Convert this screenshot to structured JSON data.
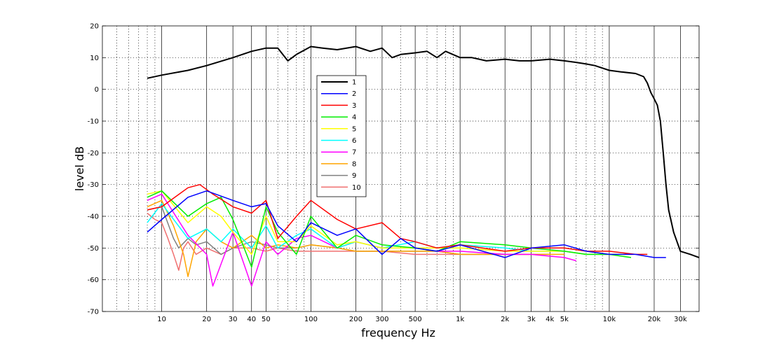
{
  "chart_data": {
    "type": "line",
    "xlabel": "frequency   Hz",
    "ylabel": "level dB",
    "xscale": "log",
    "xlim": [
      4,
      40000
    ],
    "ylim": [
      -70,
      20
    ],
    "grid": "on",
    "legend_placement": "center-upper",
    "x_ticks": [
      {
        "value": 10,
        "label": "10"
      },
      {
        "value": 20,
        "label": "20"
      },
      {
        "value": 30,
        "label": "30"
      },
      {
        "value": 40,
        "label": "40"
      },
      {
        "value": 50,
        "label": "50"
      },
      {
        "value": 100,
        "label": "100"
      },
      {
        "value": 200,
        "label": "200"
      },
      {
        "value": 300,
        "label": "300"
      },
      {
        "value": 500,
        "label": "500"
      },
      {
        "value": 1000,
        "label": "1k"
      },
      {
        "value": 2000,
        "label": "2k"
      },
      {
        "value": 3000,
        "label": "3k"
      },
      {
        "value": 4000,
        "label": "4k"
      },
      {
        "value": 5000,
        "label": "5k"
      },
      {
        "value": 10000,
        "label": "10k"
      },
      {
        "value": 20000,
        "label": "20k"
      },
      {
        "value": 30000,
        "label": "30k"
      }
    ],
    "x_minor_dotted": [
      5,
      6,
      7,
      8,
      9,
      60,
      70,
      80,
      90,
      400,
      600,
      700,
      800,
      900,
      6000,
      7000,
      8000,
      9000
    ],
    "y_ticks": [
      20,
      10,
      0,
      -10,
      -20,
      -30,
      -40,
      -50,
      -60,
      -70
    ],
    "series": [
      {
        "name": "1",
        "color": "#000000",
        "x": [
          8,
          10,
          15,
          20,
          30,
          40,
          50,
          60,
          70,
          80,
          100,
          120,
          150,
          200,
          250,
          300,
          350,
          400,
          500,
          600,
          700,
          800,
          1000,
          1200,
          1500,
          2000,
          2500,
          3000,
          4000,
          5000,
          6000,
          7000,
          8000,
          10000,
          12000,
          15000,
          17000,
          18000,
          19000,
          20000,
          21000,
          22000,
          23000,
          24000,
          25000,
          27000,
          30000,
          35000,
          40000
        ],
        "y": [
          3.5,
          4.5,
          6,
          7.5,
          10,
          12,
          13,
          13,
          9,
          11,
          13.5,
          13,
          12.5,
          13.5,
          12,
          13,
          10,
          11,
          11.5,
          12,
          10,
          12,
          10,
          10,
          9,
          9.5,
          9,
          9,
          9.5,
          9,
          8.5,
          8,
          7.5,
          6,
          5.5,
          5,
          4,
          2,
          -1,
          -3,
          -5,
          -10,
          -20,
          -30,
          -38,
          -45,
          -51,
          -52,
          -53
        ]
      },
      {
        "name": "2",
        "color": "#0000ff",
        "x": [
          8,
          10,
          15,
          20,
          30,
          40,
          50,
          60,
          80,
          100,
          150,
          200,
          300,
          400,
          500,
          700,
          1000,
          2000,
          3000,
          5000,
          7000,
          10000,
          15000,
          20000,
          24000
        ],
        "y": [
          -45,
          -41,
          -34,
          -32,
          -35,
          -37,
          -36,
          -43,
          -48,
          -42,
          -46,
          -44,
          -52,
          -47,
          -50,
          -51,
          -49,
          -53,
          -50,
          -49,
          -51,
          -52,
          -52,
          -53,
          -53
        ]
      },
      {
        "name": "3",
        "color": "#ff0000",
        "x": [
          8,
          10,
          15,
          18,
          22,
          30,
          40,
          50,
          60,
          80,
          100,
          150,
          200,
          300,
          400,
          500,
          700,
          1000,
          2000,
          3000,
          5000,
          7000,
          10000,
          15000,
          18000
        ],
        "y": [
          -38,
          -37,
          -31,
          -30,
          -33,
          -37,
          -39,
          -35,
          -47,
          -40,
          -35,
          -41,
          -44,
          -42,
          -47,
          -48,
          -50,
          -49,
          -51,
          -50,
          -50,
          -51,
          -51,
          -52,
          -52
        ]
      },
      {
        "name": "4",
        "color": "#00ee00",
        "x": [
          8,
          10,
          15,
          20,
          25,
          30,
          40,
          50,
          60,
          80,
          100,
          150,
          200,
          300,
          500,
          700,
          1000,
          2000,
          3000,
          5000,
          7000,
          10000,
          14000
        ],
        "y": [
          -34,
          -32,
          -40,
          -36,
          -34,
          -41,
          -56,
          -37,
          -45,
          -52,
          -40,
          -50,
          -46,
          -49,
          -50,
          -51,
          -48,
          -49,
          -50,
          -51,
          -52,
          -52,
          -53
        ]
      },
      {
        "name": "5",
        "color": "#ffff00",
        "x": [
          8,
          10,
          15,
          20,
          25,
          30,
          40,
          50,
          60,
          80,
          100,
          150,
          200,
          300,
          500,
          700,
          1000,
          2000,
          3000,
          5000,
          7000,
          10000,
          13000
        ],
        "y": [
          -33,
          -32,
          -42,
          -37,
          -40,
          -45,
          -52,
          -40,
          -48,
          -48,
          -43,
          -49,
          -48,
          -50,
          -50,
          -50,
          -50,
          -51,
          -51,
          -51,
          -52,
          -52,
          -52
        ]
      },
      {
        "name": "6",
        "color": "#00ffff",
        "x": [
          8,
          10,
          15,
          20,
          25,
          30,
          40,
          50,
          60,
          80,
          100,
          150,
          200,
          300,
          500,
          700,
          1000,
          2000,
          3000,
          5000,
          7000,
          10000,
          12000
        ],
        "y": [
          -42,
          -36,
          -47,
          -44,
          -48,
          -44,
          -50,
          -43,
          -50,
          -46,
          -44,
          -50,
          -48,
          -50,
          -48,
          -50,
          -49,
          -50,
          -51,
          -51,
          -52,
          -52,
          -52
        ]
      },
      {
        "name": "7",
        "color": "#ff00ff",
        "x": [
          8,
          10,
          15,
          20,
          22,
          25,
          30,
          40,
          50,
          60,
          80,
          100,
          150,
          200,
          300,
          500,
          700,
          1000,
          2000,
          3000,
          5000,
          6000
        ],
        "y": [
          -35,
          -33,
          -46,
          -52,
          -62,
          -55,
          -45,
          -62,
          -48,
          -52,
          -47,
          -46,
          -50,
          -48,
          -50,
          -50,
          -51,
          -51,
          -52,
          -52,
          -53,
          -54
        ]
      },
      {
        "name": "8",
        "color": "#ffa500",
        "x": [
          8,
          10,
          12,
          14,
          15,
          17,
          20,
          25,
          30,
          40,
          50,
          60,
          80,
          100,
          150,
          200,
          300,
          500,
          700,
          1000,
          2000,
          3000,
          5000
        ],
        "y": [
          -37,
          -35,
          -43,
          -52,
          -59,
          -48,
          -44,
          -48,
          -50,
          -46,
          -50,
          -49,
          -50,
          -49,
          -50,
          -51,
          -51,
          -51,
          -51,
          -52,
          -52,
          -52,
          -52
        ]
      },
      {
        "name": "9",
        "color": "#808080",
        "x": [
          8,
          10,
          12,
          13,
          15,
          17,
          20,
          25,
          30,
          40,
          50,
          60,
          80,
          100,
          150,
          200,
          300,
          500,
          700,
          1000,
          2000,
          3000,
          4000
        ],
        "y": [
          -38,
          -37,
          -47,
          -50,
          -47,
          -49,
          -48,
          -52,
          -50,
          -48,
          -49,
          -50,
          -50,
          -49,
          -50,
          -51,
          -51,
          -51,
          -51,
          -52,
          -52,
          -52,
          -52
        ]
      },
      {
        "name": "10",
        "color": "#f07070",
        "x": [
          8,
          9,
          10,
          11,
          12,
          13,
          14,
          15,
          17,
          20,
          25,
          30,
          40,
          50,
          60,
          80,
          100,
          150,
          200,
          300,
          500,
          700,
          1000,
          2000,
          3000
        ],
        "y": [
          -39,
          -41,
          -42,
          -47,
          -52,
          -57,
          -50,
          -48,
          -52,
          -50,
          -52,
          -50,
          -50,
          -51,
          -50,
          -51,
          -51,
          -51,
          -51,
          -51,
          -52,
          -52,
          -52,
          -52,
          -52
        ]
      }
    ]
  }
}
